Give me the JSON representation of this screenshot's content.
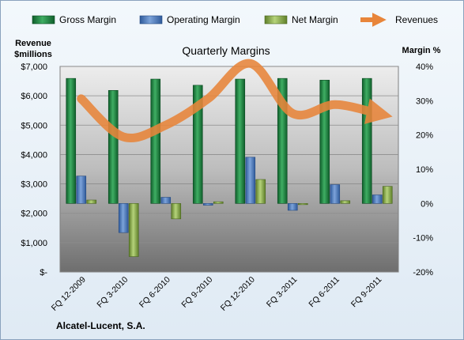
{
  "chart_data": {
    "type": "bar",
    "title": "Quarterly Margins",
    "company": "Alcatel-Lucent, S.A.",
    "y_left": {
      "label_line1": "Revenue",
      "label_line2": "$millions",
      "range": [
        0,
        7000
      ],
      "ticks": [
        "$-",
        "$1,000",
        "$2,000",
        "$3,000",
        "$4,000",
        "$5,000",
        "$6,000",
        "$7,000"
      ]
    },
    "y_right": {
      "label": "Margin %",
      "range": [
        -20,
        40
      ],
      "ticks": [
        "-20%",
        "-10%",
        "0%",
        "10%",
        "20%",
        "30%",
        "40%"
      ]
    },
    "categories": [
      "FQ 12-2009",
      "FQ 3-2010",
      "FQ 6-2010",
      "FQ 9-2010",
      "FQ 12-2010",
      "FQ 3-2011",
      "FQ 6-2011",
      "FQ 9-2011"
    ],
    "series": [
      {
        "name": "Gross Margin",
        "axis": "right",
        "color": "#1e8a46",
        "values": [
          36.5,
          33.0,
          36.3,
          34.5,
          36.3,
          36.5,
          36.0,
          36.5
        ]
      },
      {
        "name": "Operating Margin",
        "axis": "right",
        "color": "#4f7ec0",
        "values": [
          8.0,
          -8.5,
          1.8,
          -0.5,
          13.5,
          -2.0,
          5.5,
          2.5
        ]
      },
      {
        "name": "Net Margin",
        "axis": "right",
        "color": "#8ab04a",
        "values": [
          1.0,
          -15.5,
          -4.5,
          0.5,
          7.0,
          -0.3,
          0.8,
          5.0
        ]
      },
      {
        "name": "Revenues",
        "axis": "left",
        "type": "line",
        "color": "#e8853a",
        "values": [
          5900,
          4600,
          5000,
          5900,
          7100,
          5400,
          5700,
          5400
        ]
      }
    ],
    "legend_position": "top",
    "grid": true
  }
}
